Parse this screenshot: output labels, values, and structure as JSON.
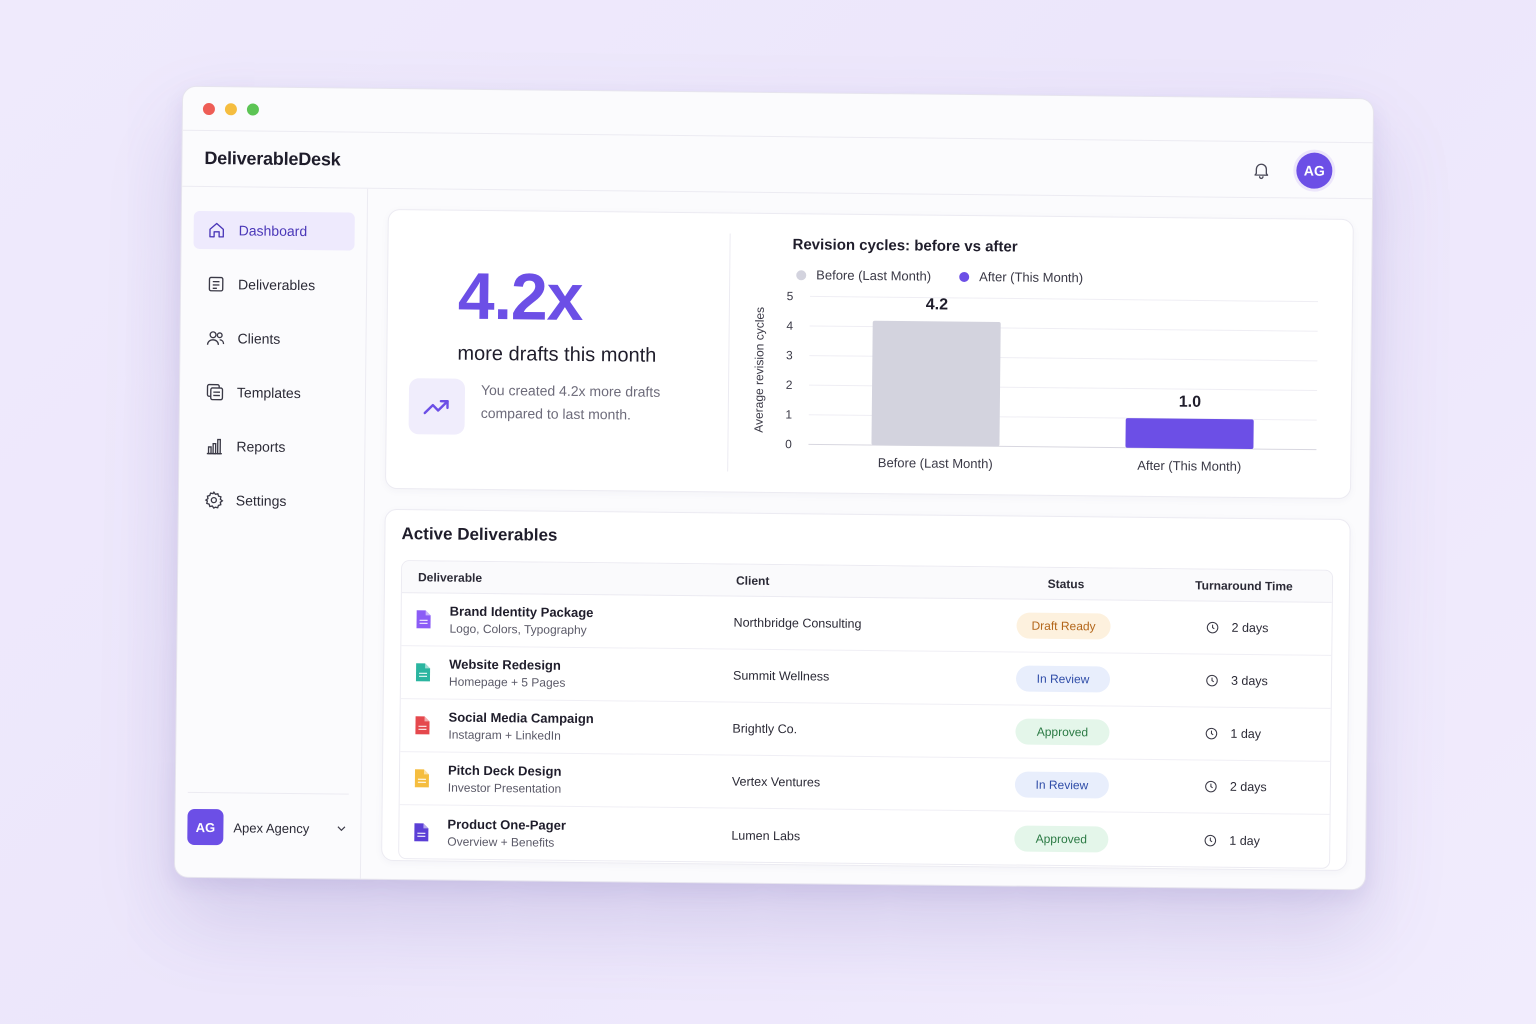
{
  "app": {
    "brand": "DeliverableDesk",
    "user_initials": "AG"
  },
  "sidebar": {
    "items": [
      {
        "label": "Dashboard",
        "icon": "home-icon",
        "active": true
      },
      {
        "label": "Deliverables",
        "icon": "document-list-icon",
        "active": false
      },
      {
        "label": "Clients",
        "icon": "users-icon",
        "active": false
      },
      {
        "label": "Templates",
        "icon": "templates-icon",
        "active": false
      },
      {
        "label": "Reports",
        "icon": "bar-chart-icon",
        "active": false
      },
      {
        "label": "Settings",
        "icon": "gear-icon",
        "active": false
      }
    ],
    "org": {
      "initials": "AG",
      "name": "Apex Agency"
    }
  },
  "hero": {
    "metric": "4.2x",
    "metric_label": "more drafts this month",
    "insight": "You created 4.2x more drafts compared to last month."
  },
  "chart_data": {
    "type": "bar",
    "title": "Revision cycles: before vs after",
    "ylabel": "Average revision cycles",
    "xlabel": "",
    "categories": [
      "Before (Last Month)",
      "After (This Month)"
    ],
    "values": [
      4.2,
      1.0
    ],
    "value_labels": [
      "4.2",
      "1.0"
    ],
    "legend": [
      "Before (Last Month)",
      "After (This Month)"
    ],
    "colors": [
      "#d3d3de",
      "#6c4fe6"
    ],
    "ylim": [
      0,
      5
    ],
    "yticks": [
      "0",
      "1",
      "2",
      "3",
      "4",
      "5"
    ],
    "grid": true,
    "legend_position": "top"
  },
  "table": {
    "title": "Active Deliverables",
    "headers": [
      "Deliverable",
      "Client",
      "Status",
      "Turnaround Time"
    ],
    "rows": [
      {
        "name": "Brand Identity Package",
        "sub": "Logo, Colors, Typography",
        "client": "Northbridge Consulting",
        "status": "Draft Ready",
        "status_kind": "draft",
        "turnaround": "2 days",
        "icon_color": "#8b5cf6"
      },
      {
        "name": "Website Redesign",
        "sub": "Homepage + 5 Pages",
        "client": "Summit Wellness",
        "status": "In Review",
        "status_kind": "review",
        "turnaround": "3 days",
        "icon_color": "#2bb5a0"
      },
      {
        "name": "Social Media Campaign",
        "sub": "Instagram + LinkedIn",
        "client": "Brightly Co.",
        "status": "Approved",
        "status_kind": "approved",
        "turnaround": "1 day",
        "icon_color": "#e5484d"
      },
      {
        "name": "Pitch Deck Design",
        "sub": "Investor Presentation",
        "client": "Vertex Ventures",
        "status": "In Review",
        "status_kind": "review",
        "turnaround": "2 days",
        "icon_color": "#f5bd3f"
      },
      {
        "name": "Product One-Pager",
        "sub": "Overview + Benefits",
        "client": "Lumen Labs",
        "status": "Approved",
        "status_kind": "approved",
        "turnaround": "1 day",
        "icon_color": "#5b3fd6"
      }
    ]
  }
}
